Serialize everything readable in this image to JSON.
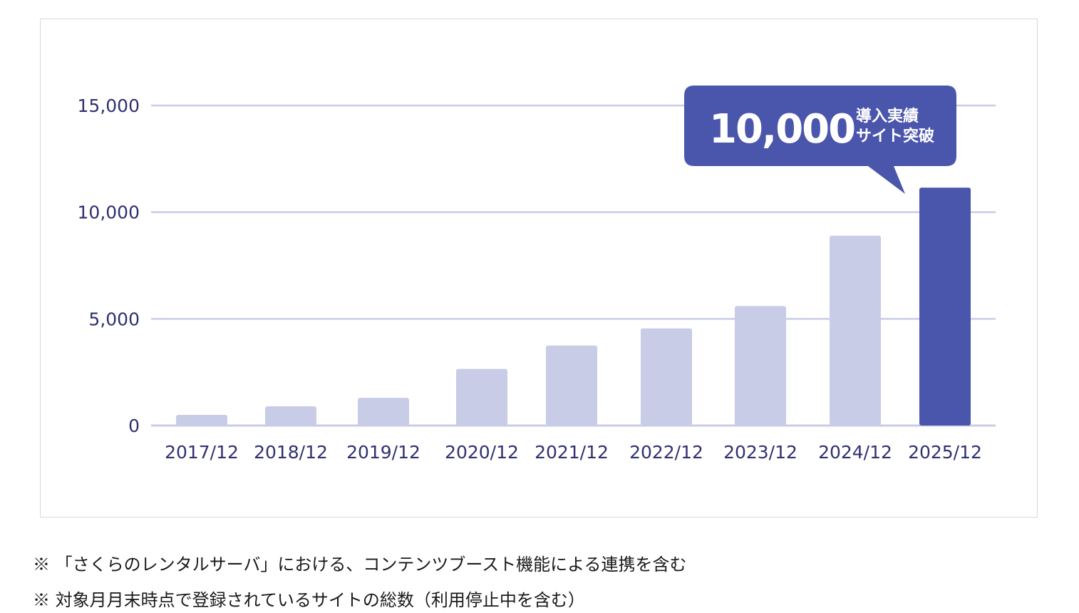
{
  "chart_data": {
    "type": "bar",
    "categories": [
      "2017/12",
      "2018/12",
      "2019/12",
      "2020/12",
      "2021/12",
      "2022/12",
      "2023/12",
      "2024/12",
      "2025/12"
    ],
    "values": [
      500,
      900,
      1300,
      2650,
      3750,
      4550,
      5600,
      8900,
      11150
    ],
    "ylim": [
      0,
      15000
    ],
    "yticks": [
      0,
      5000,
      10000,
      15000
    ],
    "ytick_labels": [
      "0",
      "5,000",
      "10,000",
      "15,000"
    ],
    "grid": true,
    "colors": {
      "bar": "#c8cce6",
      "highlight_bar": "#4a55ac",
      "grid": "#c9cce6",
      "axis_text": "#2f3170",
      "callout": "#4a55ac"
    },
    "highlight_index": 8,
    "annotation": {
      "value_text": "10,000",
      "line1": "導入実績",
      "line2": "サイト突破",
      "target_index": 8
    }
  },
  "notes": [
    "※ 「さくらのレンタルサーバ」における、コンテンツブースト機能による連携を含む",
    "※ 対象月月末時点で登録されているサイトの総数（利用停止中を含む）"
  ]
}
